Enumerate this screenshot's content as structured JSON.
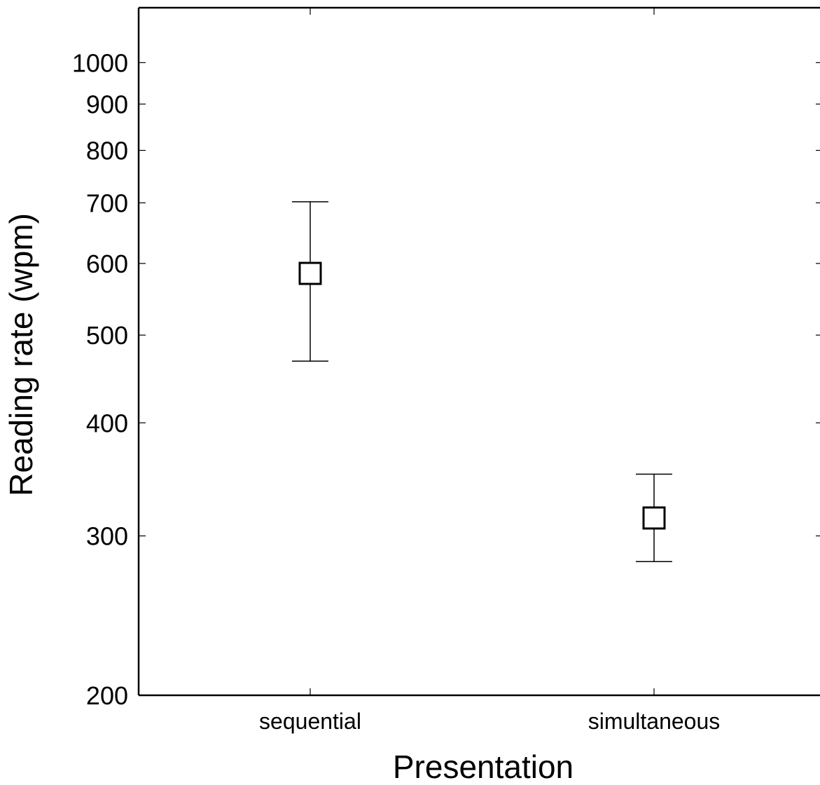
{
  "chart_data": {
    "type": "scatter",
    "xlabel": "Presentation",
    "ylabel": "Reading rate (wpm)",
    "y_scale": "log",
    "ylim": [
      200,
      1150
    ],
    "y_ticks": [
      200,
      300,
      400,
      500,
      600,
      700,
      800,
      900,
      1000
    ],
    "y_tick_labels": [
      "200",
      "300",
      "400",
      "500",
      "600",
      "700",
      "800",
      "900",
      "1000"
    ],
    "categories": [
      "sequential",
      "simultaneous"
    ],
    "points": [
      {
        "category": "sequential",
        "value": 585,
        "err_low": 468,
        "err_high": 702
      },
      {
        "category": "simultaneous",
        "value": 314,
        "err_low": 281,
        "err_high": 351
      }
    ],
    "grid": false,
    "marker": "open-square"
  }
}
